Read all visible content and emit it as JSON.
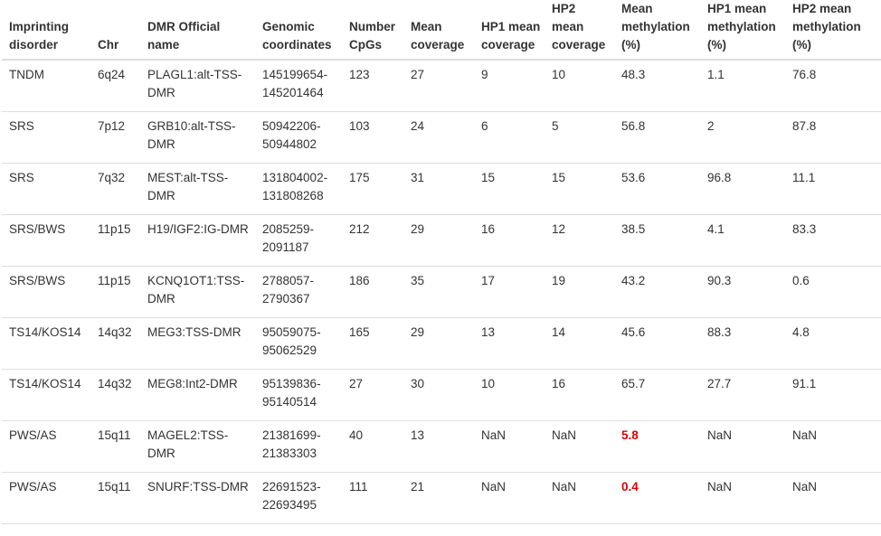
{
  "table": {
    "columns": [
      "Imprinting disorder",
      "Chr",
      "DMR Official name",
      "Genomic coordinates",
      "Number CpGs",
      "Mean coverage",
      "HP1 mean coverage",
      "HP2 mean coverage",
      "Mean methylation (%)",
      "HP1 mean methylation (%)",
      "HP2 mean methylation (%)"
    ],
    "rows": [
      [
        "TNDM",
        "6q24",
        "PLAGL1:alt-TSS-DMR",
        "145199654-145201464",
        "123",
        "27",
        "9",
        "10",
        "48.3",
        "1.1",
        "76.8"
      ],
      [
        "SRS",
        "7p12",
        "GRB10:alt-TSS-DMR",
        "50942206-50944802",
        "103",
        "24",
        "6",
        "5",
        "56.8",
        "2",
        "87.8"
      ],
      [
        "SRS",
        "7q32",
        "MEST:alt-TSS-DMR",
        "131804002-131808268",
        "175",
        "31",
        "15",
        "15",
        "53.6",
        "96.8",
        "11.1"
      ],
      [
        "SRS/BWS",
        "11p15",
        "H19/IGF2:IG-DMR",
        "2085259-2091187",
        "212",
        "29",
        "16",
        "12",
        "38.5",
        "4.1",
        "83.3"
      ],
      [
        "SRS/BWS",
        "11p15",
        "KCNQ1OT1:TSS-DMR",
        "2788057-2790367",
        "186",
        "35",
        "17",
        "19",
        "43.2",
        "90.3",
        "0.6"
      ],
      [
        "TS14/KOS14",
        "14q32",
        "MEG3:TSS-DMR",
        "95059075-95062529",
        "165",
        "29",
        "13",
        "14",
        "45.6",
        "88.3",
        "4.8"
      ],
      [
        "TS14/KOS14",
        "14q32",
        "MEG8:Int2-DMR",
        "95139836-95140514",
        "27",
        "30",
        "10",
        "16",
        "65.7",
        "27.7",
        "91.1"
      ],
      [
        "PWS/AS",
        "15q11",
        "MAGEL2:TSS-DMR",
        "21381699-21383303",
        "40",
        "13",
        "NaN",
        "NaN",
        "5.8",
        "NaN",
        "NaN"
      ],
      [
        "PWS/AS",
        "15q11",
        "SNURF:TSS-DMR",
        "22691523-22693495",
        "111",
        "21",
        "NaN",
        "NaN",
        "0.4",
        "NaN",
        "NaN"
      ]
    ],
    "highlighted_cells": [
      [
        7,
        8
      ],
      [
        8,
        8
      ]
    ],
    "highlight_color": "#e00000",
    "border_color": "#dddddd",
    "text_color": "#333333"
  }
}
